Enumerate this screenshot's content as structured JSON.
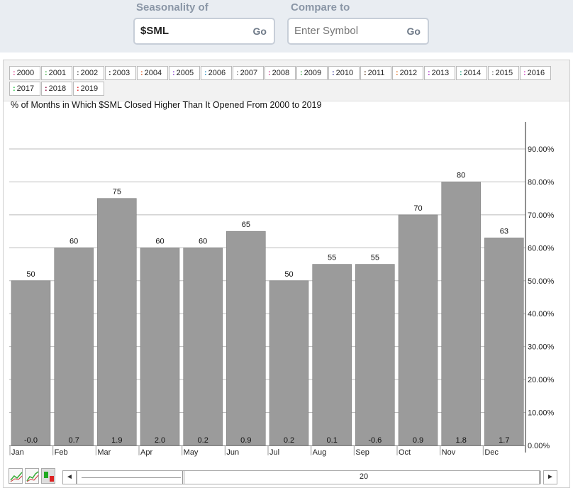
{
  "header": {
    "seasonality_label": "Seasonality of",
    "symbol_value": "$SML",
    "go_label": "Go",
    "compare_label": "Compare to",
    "compare_placeholder": "Enter Symbol",
    "compare_go_label": "Go"
  },
  "legend": [
    {
      "label": "2000",
      "color": "#e0448f"
    },
    {
      "label": "2001",
      "color": "#3cb043"
    },
    {
      "label": "2002",
      "color": "#555555"
    },
    {
      "label": "2003",
      "color": "#222222"
    },
    {
      "label": "2004",
      "color": "#e06030"
    },
    {
      "label": "2005",
      "color": "#8a3fd1"
    },
    {
      "label": "2006",
      "color": "#2a8fbd"
    },
    {
      "label": "2007",
      "color": "#777777"
    },
    {
      "label": "2008",
      "color": "#d04090"
    },
    {
      "label": "2009",
      "color": "#3cb043"
    },
    {
      "label": "2010",
      "color": "#333399"
    },
    {
      "label": "2011",
      "color": "#4a2a10"
    },
    {
      "label": "2012",
      "color": "#e07020"
    },
    {
      "label": "2013",
      "color": "#a020c0"
    },
    {
      "label": "2014",
      "color": "#20a080"
    },
    {
      "label": "2015",
      "color": "#888888"
    },
    {
      "label": "2016",
      "color": "#d040c0"
    },
    {
      "label": "2017",
      "color": "#20c040"
    },
    {
      "label": "2018",
      "color": "#8a1040"
    },
    {
      "label": "2019",
      "color": "#e03030"
    }
  ],
  "chart_data": {
    "type": "bar",
    "title": "% of Months in Which $SML Closed Higher Than It Opened From 2000 to 2019",
    "categories": [
      "Jan",
      "Feb",
      "Mar",
      "Apr",
      "May",
      "Jun",
      "Jul",
      "Aug",
      "Sep",
      "Oct",
      "Nov",
      "Dec"
    ],
    "values": [
      50,
      60,
      75,
      60,
      60,
      65,
      50,
      55,
      55,
      70,
      80,
      63
    ],
    "value_labels": [
      "50",
      "60",
      "75",
      "60",
      "60",
      "65",
      "50",
      "55",
      "55",
      "70",
      "80",
      "63"
    ],
    "avg_labels": [
      "-0.0",
      "0.7",
      "1.9",
      "2.0",
      "0.2",
      "0.9",
      "0.2",
      "0.1",
      "-0.6",
      "0.9",
      "1.8",
      "1.7"
    ],
    "ylim": [
      0,
      100
    ],
    "y_ticks": [
      "0.00%",
      "10.00%",
      "20.00%",
      "30.00%",
      "40.00%",
      "50.00%",
      "60.00%",
      "70.00%",
      "80.00%",
      "90.00%"
    ],
    "bar_color": "#9b9b9b",
    "grid": true,
    "y_axis_side": "right"
  },
  "slider": {
    "value": "20",
    "left_arrow": "◄",
    "right_arrow": "►"
  }
}
